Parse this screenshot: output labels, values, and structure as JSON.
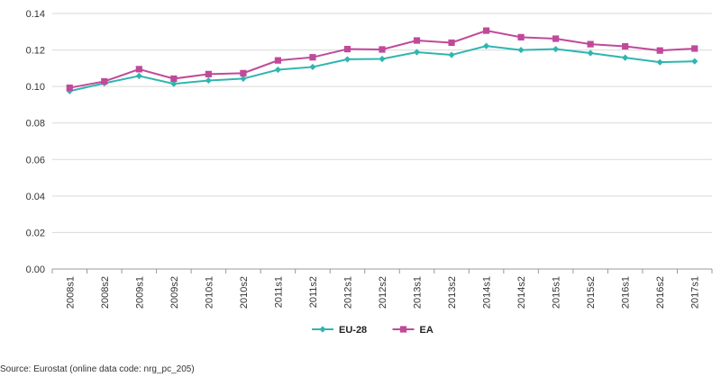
{
  "chart_data": {
    "type": "line",
    "categories": [
      "2008s1",
      "2008s2",
      "2009s1",
      "2009s2",
      "2010s1",
      "2010s2",
      "2011s1",
      "2011s2",
      "2012s1",
      "2012s2",
      "2013s1",
      "2013s2",
      "2014s1",
      "2014s2",
      "2015s1",
      "2015s2",
      "2016s1",
      "2016s2",
      "2017s1"
    ],
    "series": [
      {
        "name": "EU-28",
        "color": "#2fb5b0",
        "marker": "diamond",
        "values": [
          0.0975,
          0.1018,
          0.1058,
          0.1015,
          0.1033,
          0.1043,
          0.1092,
          0.1107,
          0.1149,
          0.1151,
          0.1188,
          0.1173,
          0.1222,
          0.12,
          0.1205,
          0.1183,
          0.1158,
          0.1133,
          0.1138
        ]
      },
      {
        "name": "EA",
        "color": "#c0499a",
        "marker": "square",
        "values": [
          0.0993,
          0.1028,
          0.1095,
          0.1043,
          0.1068,
          0.1073,
          0.1143,
          0.116,
          0.1205,
          0.1203,
          0.1252,
          0.124,
          0.1306,
          0.127,
          0.1262,
          0.1232,
          0.122,
          0.1197,
          0.1208
        ]
      }
    ],
    "y_ticks": [
      "0.00",
      "0.02",
      "0.04",
      "0.06",
      "0.08",
      "0.10",
      "0.12",
      "0.14"
    ],
    "ylim": [
      0,
      0.14
    ],
    "grid": "horizontal",
    "legend_position": "bottom-center"
  },
  "source": "Source: Eurostat (online data code: nrg_pc_205)"
}
